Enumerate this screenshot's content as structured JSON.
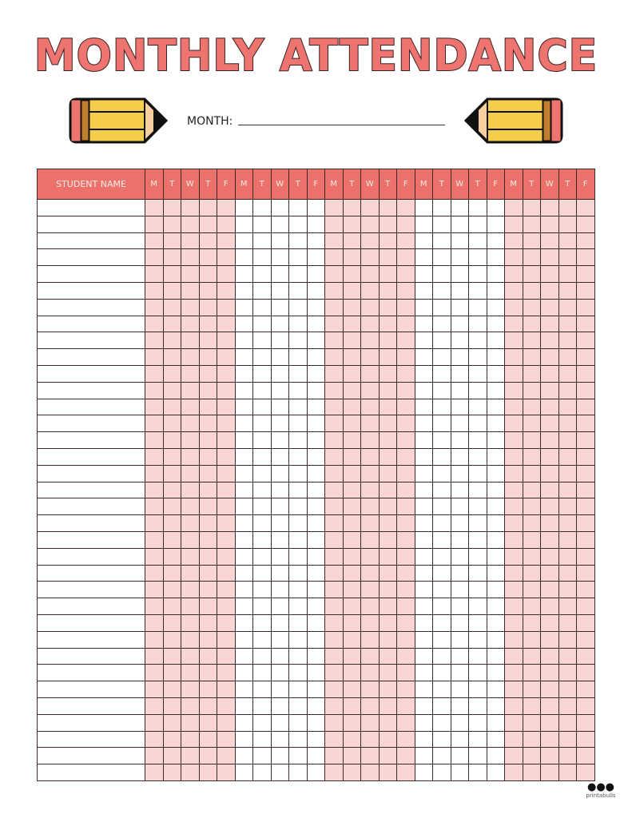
{
  "title": "MONTHLY ATTENDANCE",
  "month": {
    "label": "MONTH:",
    "value": ""
  },
  "table": {
    "name_header": "STUDENT NAME",
    "days": [
      "M",
      "T",
      "W",
      "T",
      "F",
      "M",
      "T",
      "W",
      "T",
      "F",
      "M",
      "T",
      "W",
      "T",
      "F",
      "M",
      "T",
      "W",
      "T",
      "F",
      "M",
      "T",
      "W",
      "T",
      "F"
    ]
  },
  "colors": {
    "header": "#ec716b",
    "shaded_week": "#f9d6d3",
    "title": "#ee7470",
    "pencil_body": "#f6cd48"
  },
  "logo": {
    "text": "printabulls"
  }
}
